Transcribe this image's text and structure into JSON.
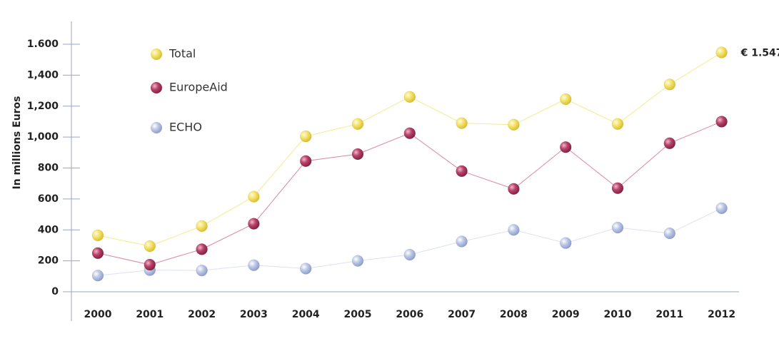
{
  "chart_data": {
    "type": "line",
    "x": [
      "2000",
      "2001",
      "2002",
      "2003",
      "2004",
      "2005",
      "2006",
      "2007",
      "2008",
      "2009",
      "2010",
      "2011",
      "2012"
    ],
    "ylabel": "In millions Euros",
    "ylim": [
      0,
      1600
    ],
    "yticks": [
      {
        "value": 0,
        "label": "0"
      },
      {
        "value": 200,
        "label": "200"
      },
      {
        "value": 400,
        "label": "400"
      },
      {
        "value": 600,
        "label": "600"
      },
      {
        "value": 800,
        "label": "800"
      },
      {
        "value": 1000,
        "label": "1,000"
      },
      {
        "value": 1200,
        "label": "1,200"
      },
      {
        "value": 1400,
        "label": "1,400"
      },
      {
        "value": 1600,
        "label": "1.600"
      }
    ],
    "grid": false,
    "legend_position": "top-left",
    "series": [
      {
        "name": "Total",
        "color": "#f2dc4a",
        "line_color": "#f5eb8c",
        "values": [
          365,
          295,
          425,
          615,
          1005,
          1085,
          1260,
          1090,
          1080,
          1245,
          1085,
          1340,
          1547
        ]
      },
      {
        "name": "EuropeAid",
        "color": "#b03a5e",
        "line_color": "#d98aa0",
        "values": [
          250,
          175,
          275,
          440,
          845,
          890,
          1025,
          780,
          665,
          935,
          670,
          960,
          1100
        ]
      },
      {
        "name": "ECHO",
        "color": "#a7b6dc",
        "line_color": "#dce2f0",
        "values": [
          105,
          140,
          138,
          172,
          150,
          200,
          240,
          325,
          400,
          315,
          415,
          378,
          540
        ]
      }
    ],
    "annotation": {
      "text": "€ 1.547",
      "series": "Total",
      "x": "2012",
      "y": 1547
    }
  }
}
